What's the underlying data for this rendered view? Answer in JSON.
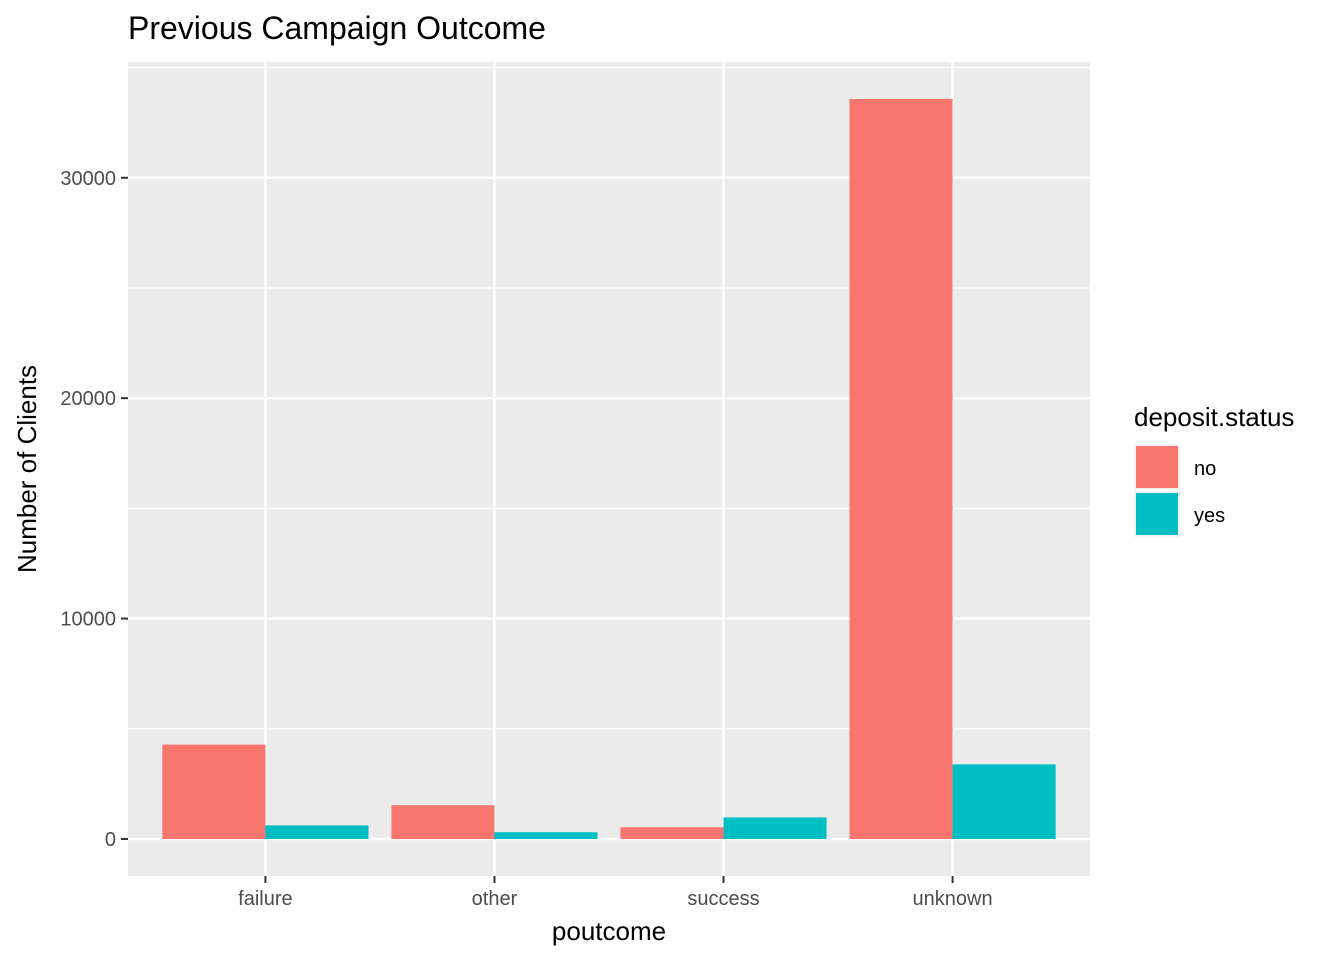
{
  "chart_data": {
    "type": "bar",
    "title": "Previous Campaign Outcome",
    "xlabel": "poutcome",
    "ylabel": "Number of Clients",
    "categories": [
      "failure",
      "other",
      "success",
      "unknown"
    ],
    "series": [
      {
        "name": "no",
        "values": [
          4283,
          1533,
          533,
          33573
        ],
        "color": "#F8766D"
      },
      {
        "name": "yes",
        "values": [
          618,
          307,
          978,
          3386
        ],
        "color": "#00BFC4"
      }
    ],
    "y_ticks": [
      0,
      10000,
      20000,
      30000
    ],
    "y_tick_labels": [
      "0",
      "10000",
      "20000",
      "30000"
    ],
    "ylim": [
      -1679,
      35252
    ],
    "legend": {
      "title": "deposit.status",
      "placement": "right",
      "items": [
        "no",
        "yes"
      ]
    },
    "grid": true,
    "panel_background": "#EBEBEB",
    "grid_color": "#FFFFFF"
  }
}
